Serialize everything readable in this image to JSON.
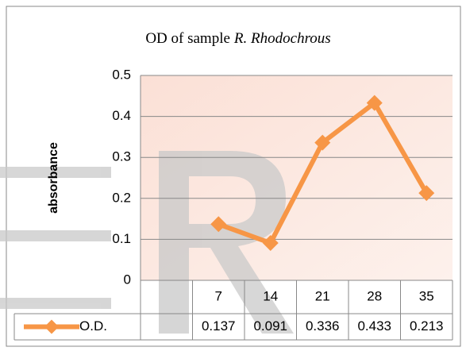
{
  "chart_data": {
    "type": "line",
    "title": "OD of  sample",
    "title_italic": "R. Rhodochrous",
    "y_label": "absorbance",
    "categories": [
      null,
      7,
      14,
      21,
      28,
      35
    ],
    "series": [
      {
        "name": "O.D.",
        "color": "#f79646",
        "values": [
          null,
          0.137,
          0.091,
          0.336,
          0.433,
          0.213
        ]
      }
    ],
    "ylim": [
      0,
      0.5
    ],
    "yticks": [
      0,
      0.1,
      0.2,
      0.3,
      0.4,
      0.5
    ],
    "grid": true,
    "data_table": true
  }
}
